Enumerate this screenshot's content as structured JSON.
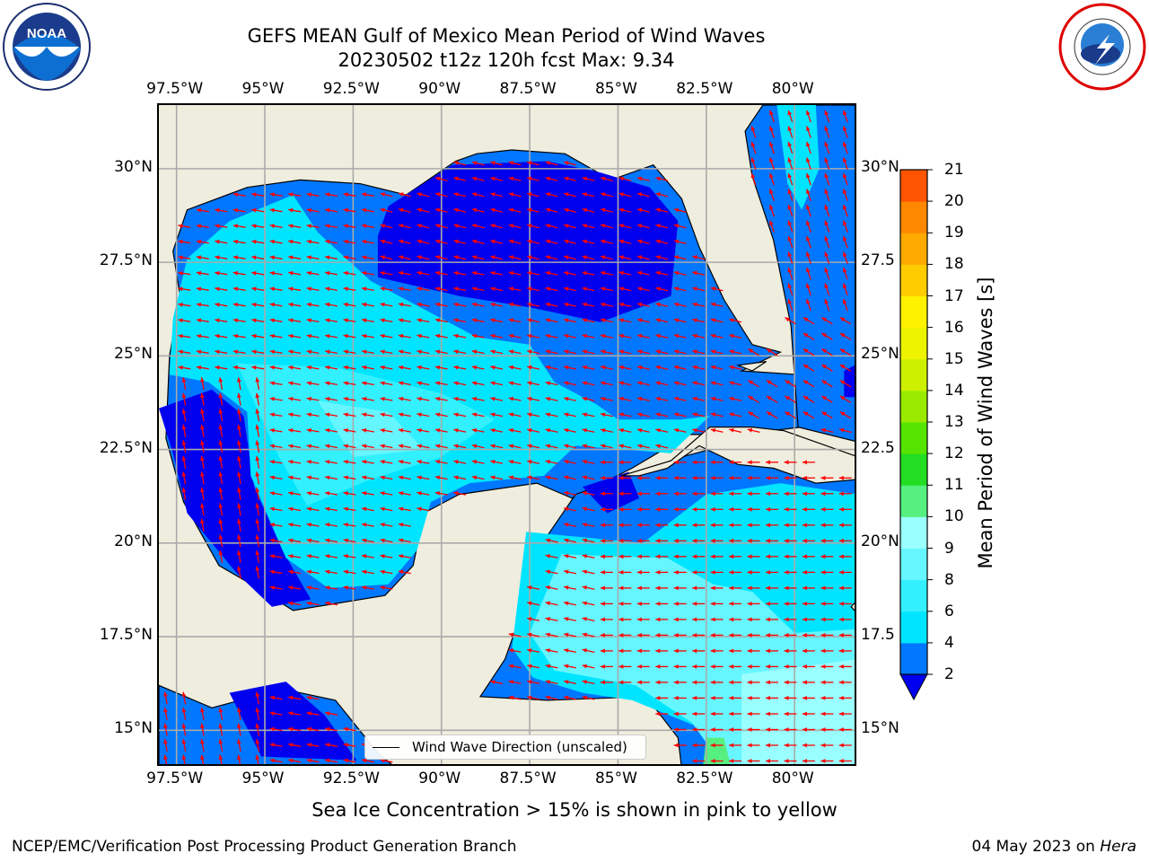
{
  "title": {
    "line1": "GEFS MEAN Gulf of Mexico Mean Period of Wind Waves",
    "line2": "20230502 t12z 120h fcst   Max: 9.34"
  },
  "logos": {
    "left": {
      "icon": "noaa-logo",
      "text": "NOAA",
      "ring_text": "NATIONAL OCEANIC AND ATMOSPHERIC ADMINISTRATION · U.S. DEPARTMENT OF COMMERCE"
    },
    "right": {
      "icon": "nws-logo",
      "ring_text": "NATIONAL WEATHER SERVICE"
    }
  },
  "map": {
    "extent_lon": [
      -98.0,
      -78.2
    ],
    "extent_lat": [
      14.0,
      31.7
    ],
    "lon_ticks": [
      "97.5°W",
      "95°W",
      "92.5°W",
      "90°W",
      "87.5°W",
      "85°W",
      "82.5°W",
      "80°W"
    ],
    "lon_tick_values": [
      -97.5,
      -95,
      -92.5,
      -90,
      -87.5,
      -85,
      -82.5,
      -80
    ],
    "lat_ticks_left": [
      "30°N",
      "27.5°N",
      "25°N",
      "22.5°N",
      "20°N",
      "17.5°N",
      "15°N"
    ],
    "lat_ticks_right": [
      "30°N",
      "27.5",
      "25°N",
      "22.5",
      "20°N",
      "17.5",
      "15°N"
    ],
    "lat_tick_values": [
      30,
      27.5,
      25,
      22.5,
      20,
      17.5,
      15
    ],
    "land_color": "#efedde",
    "grid": true,
    "arrow_color": "#ff0000",
    "legend": {
      "label": "Wind Wave Direction (unscaled)",
      "placement": "bottom-center"
    }
  },
  "colorbar": {
    "label": "Mean Period of Wind Waves [s]",
    "levels": [
      "2",
      "4",
      "6",
      "8",
      "9",
      "10",
      "11",
      "12",
      "13",
      "14",
      "15",
      "16",
      "17",
      "18",
      "19",
      "20",
      "21"
    ],
    "colors": [
      "#0077ff",
      "#00e5ff",
      "#33f0ff",
      "#66f6ff",
      "#99ffff",
      "#55f080",
      "#22dd22",
      "#55e400",
      "#99ea00",
      "#ccf000",
      "#eef400",
      "#fff200",
      "#ffcc00",
      "#ffaa00",
      "#ff8800",
      "#ff5500",
      "#ff2200",
      "#ff0000"
    ],
    "under_color": "#0000ee"
  },
  "subtitle": "Sea Ice Concentration > 15% is shown in pink to yellow",
  "footer": {
    "left": "NCEP/EMC/Verification Post Processing Product Generation Branch",
    "right_date": "04 May 2023 on",
    "right_host": "Hera"
  }
}
